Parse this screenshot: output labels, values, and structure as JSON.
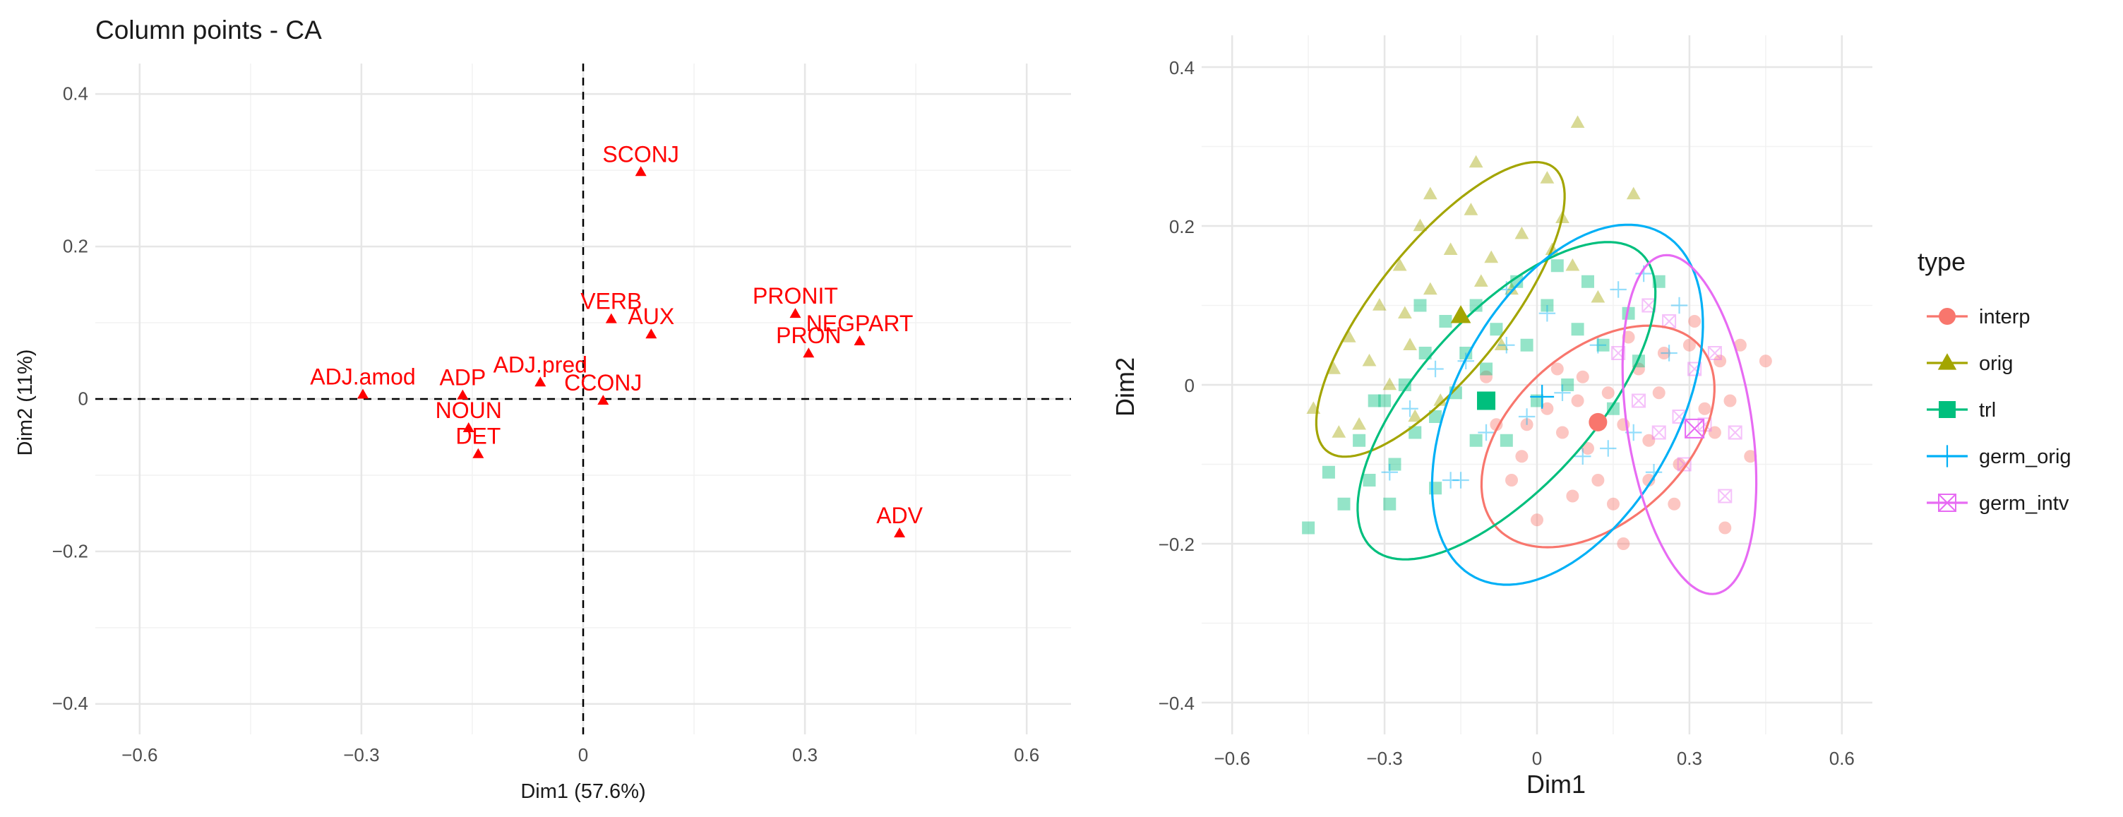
{
  "chart_data": [
    {
      "type": "scatter",
      "title": "Column points - CA",
      "xlabel": "Dim1 (57.6%)",
      "ylabel": "Dim2 (11%)",
      "xlim": [
        -0.66,
        0.66
      ],
      "ylim": [
        -0.44,
        0.44
      ],
      "xticks": [
        -0.6,
        -0.3,
        0,
        0.3,
        0.6
      ],
      "yticks": [
        -0.4,
        -0.2,
        0,
        0.2,
        0.4
      ],
      "xtick_labels": [
        "−0.6",
        "−0.3",
        "0",
        "0.3",
        "0.6"
      ],
      "ytick_labels": [
        "−0.4",
        "−0.2",
        "0",
        "0.2",
        "0.4"
      ],
      "color": "#ff0000",
      "reference_lines": {
        "x": 0,
        "y": 0
      },
      "points": [
        {
          "label": "SCONJ",
          "x": 0.078,
          "y": 0.298
        },
        {
          "label": "VERB",
          "x": 0.038,
          "y": 0.105
        },
        {
          "label": "AUX",
          "x": 0.092,
          "y": 0.085
        },
        {
          "label": "PRONIT",
          "x": 0.287,
          "y": 0.112
        },
        {
          "label": "PRON",
          "x": 0.305,
          "y": 0.06
        },
        {
          "label": "NEGPART",
          "x": 0.374,
          "y": 0.076
        },
        {
          "label": "ADJ.amod",
          "x": -0.298,
          "y": 0.006
        },
        {
          "label": "ADP",
          "x": -0.163,
          "y": 0.005
        },
        {
          "label": "ADJ.pred",
          "x": -0.058,
          "y": 0.022
        },
        {
          "label": "CCONJ",
          "x": 0.027,
          "y": -0.002
        },
        {
          "label": "NOUN",
          "x": -0.155,
          "y": -0.038
        },
        {
          "label": "DET",
          "x": -0.142,
          "y": -0.072
        },
        {
          "label": "ADV",
          "x": 0.428,
          "y": -0.176
        }
      ]
    },
    {
      "type": "scatter",
      "title": "",
      "xlabel": "Dim1",
      "ylabel": "Dim2",
      "xlim": [
        -0.66,
        0.66
      ],
      "ylim": [
        -0.44,
        0.44
      ],
      "xticks": [
        -0.6,
        -0.3,
        0,
        0.3,
        0.6
      ],
      "yticks": [
        -0.4,
        -0.2,
        0,
        0.2,
        0.4
      ],
      "xtick_labels": [
        "−0.6",
        "−0.3",
        "0",
        "0.3",
        "0.6"
      ],
      "ytick_labels": [
        "−0.4",
        "−0.2",
        "0",
        "0.2",
        "0.4"
      ],
      "legend": {
        "title": "type",
        "position": "right"
      },
      "series": [
        {
          "name": "interp",
          "color": "#F8766D",
          "marker": "circle",
          "centroid": [
            0.12,
            -0.047
          ],
          "ellipse": {
            "center": [
              0.12,
              -0.065
            ],
            "rx": 0.24,
            "ry": 0.12,
            "angle_deg": 20
          },
          "points": [
            [
              0.02,
              -0.03
            ],
            [
              0.05,
              -0.06
            ],
            [
              0.08,
              -0.02
            ],
            [
              0.1,
              -0.08
            ],
            [
              0.14,
              -0.01
            ],
            [
              0.17,
              -0.05
            ],
            [
              0.2,
              0.02
            ],
            [
              0.22,
              -0.07
            ],
            [
              0.25,
              0.04
            ],
            [
              0.28,
              -0.1
            ],
            [
              0.3,
              0.05
            ],
            [
              0.33,
              -0.03
            ],
            [
              0.36,
              0.03
            ],
            [
              0.4,
              0.05
            ],
            [
              0.42,
              -0.09
            ],
            [
              0.37,
              -0.18
            ],
            [
              0.27,
              -0.15
            ],
            [
              0.17,
              -0.2
            ],
            [
              0.07,
              -0.14
            ],
            [
              -0.03,
              -0.09
            ],
            [
              -0.08,
              -0.05
            ],
            [
              -0.05,
              -0.12
            ],
            [
              0.0,
              -0.17
            ],
            [
              0.12,
              -0.12
            ],
            [
              0.18,
              0.06
            ],
            [
              0.24,
              -0.01
            ],
            [
              0.31,
              0.08
            ],
            [
              0.38,
              -0.02
            ],
            [
              -0.1,
              0.01
            ],
            [
              0.04,
              0.02
            ],
            [
              0.09,
              0.01
            ],
            [
              0.15,
              -0.15
            ],
            [
              0.22,
              -0.12
            ],
            [
              0.35,
              -0.06
            ],
            [
              0.45,
              0.03
            ],
            [
              -0.02,
              -0.05
            ]
          ]
        },
        {
          "name": "orig",
          "color": "#A3A500",
          "marker": "triangle",
          "centroid": [
            -0.15,
            0.087
          ],
          "ellipse": {
            "center": [
              -0.19,
              0.095
            ],
            "rx": 0.29,
            "ry": 0.1,
            "angle_deg": 35
          },
          "points": [
            [
              -0.44,
              -0.03
            ],
            [
              -0.4,
              0.02
            ],
            [
              -0.37,
              0.06
            ],
            [
              -0.35,
              -0.05
            ],
            [
              -0.31,
              0.1
            ],
            [
              -0.29,
              0.0
            ],
            [
              -0.27,
              0.15
            ],
            [
              -0.25,
              0.05
            ],
            [
              -0.23,
              0.2
            ],
            [
              -0.21,
              0.12
            ],
            [
              -0.19,
              -0.02
            ],
            [
              -0.17,
              0.17
            ],
            [
              -0.15,
              0.09
            ],
            [
              -0.13,
              0.22
            ],
            [
              -0.11,
              0.13
            ],
            [
              -0.09,
              0.16
            ],
            [
              -0.07,
              0.05
            ],
            [
              -0.05,
              0.12
            ],
            [
              -0.03,
              0.19
            ],
            [
              0.03,
              0.17
            ],
            [
              0.05,
              0.21
            ],
            [
              0.12,
              0.11
            ],
            [
              0.19,
              0.24
            ],
            [
              0.07,
              0.15
            ],
            [
              -0.26,
              0.09
            ],
            [
              -0.33,
              0.03
            ],
            [
              -0.21,
              0.24
            ],
            [
              -0.12,
              0.28
            ],
            [
              0.02,
              0.26
            ],
            [
              0.08,
              0.33
            ],
            [
              -0.39,
              -0.06
            ],
            [
              -0.24,
              -0.04
            ]
          ]
        },
        {
          "name": "trl",
          "color": "#00BF7D",
          "marker": "square",
          "centroid": [
            -0.1,
            -0.02
          ],
          "ellipse": {
            "center": [
              -0.06,
              -0.02
            ],
            "rx": 0.33,
            "ry": 0.13,
            "angle_deg": 30
          },
          "points": [
            [
              -0.45,
              -0.18
            ],
            [
              -0.41,
              -0.11
            ],
            [
              -0.38,
              -0.15
            ],
            [
              -0.35,
              -0.07
            ],
            [
              -0.33,
              -0.12
            ],
            [
              -0.3,
              -0.02
            ],
            [
              -0.28,
              -0.1
            ],
            [
              -0.26,
              0.0
            ],
            [
              -0.24,
              -0.06
            ],
            [
              -0.22,
              0.04
            ],
            [
              -0.2,
              -0.04
            ],
            [
              -0.18,
              0.08
            ],
            [
              -0.16,
              -0.01
            ],
            [
              -0.14,
              0.04
            ],
            [
              -0.12,
              0.1
            ],
            [
              -0.1,
              0.02
            ],
            [
              -0.08,
              0.07
            ],
            [
              -0.06,
              -0.07
            ],
            [
              -0.04,
              0.13
            ],
            [
              -0.02,
              0.05
            ],
            [
              0.0,
              -0.02
            ],
            [
              0.02,
              0.1
            ],
            [
              0.04,
              0.15
            ],
            [
              0.06,
              0.0
            ],
            [
              0.08,
              0.07
            ],
            [
              0.1,
              0.13
            ],
            [
              0.13,
              0.05
            ],
            [
              0.15,
              -0.03
            ],
            [
              0.18,
              0.09
            ],
            [
              0.2,
              0.03
            ],
            [
              -0.32,
              -0.02
            ],
            [
              -0.2,
              -0.13
            ],
            [
              -0.12,
              -0.07
            ],
            [
              -0.29,
              -0.15
            ],
            [
              0.24,
              0.13
            ],
            [
              -0.23,
              0.1
            ]
          ]
        },
        {
          "name": "germ_orig",
          "color": "#00B0F6",
          "marker": "plus",
          "centroid": [
            0.01,
            -0.015
          ],
          "ellipse": {
            "center": [
              0.06,
              -0.025
            ],
            "rx": 0.3,
            "ry": 0.18,
            "angle_deg": 35
          },
          "points": [
            [
              -0.29,
              -0.11
            ],
            [
              -0.25,
              -0.03
            ],
            [
              -0.2,
              0.02
            ],
            [
              -0.17,
              -0.12
            ],
            [
              -0.14,
              0.03
            ],
            [
              -0.1,
              -0.06
            ],
            [
              -0.06,
              0.05
            ],
            [
              -0.02,
              -0.04
            ],
            [
              0.02,
              0.09
            ],
            [
              0.05,
              -0.01
            ],
            [
              0.09,
              -0.09
            ],
            [
              0.12,
              0.05
            ],
            [
              0.16,
              0.12
            ],
            [
              0.19,
              -0.06
            ],
            [
              0.21,
              0.14
            ],
            [
              0.23,
              -0.11
            ],
            [
              0.26,
              0.04
            ],
            [
              0.28,
              0.1
            ],
            [
              -0.15,
              -0.12
            ],
            [
              -0.06,
              0.12
            ],
            [
              0.14,
              -0.08
            ]
          ]
        },
        {
          "name": "germ_intv",
          "color": "#E76BF3",
          "marker": "boxx",
          "centroid": [
            0.31,
            -0.055
          ],
          "ellipse": {
            "center": [
              0.3,
              -0.05
            ],
            "rx": 0.22,
            "ry": 0.12,
            "angle_deg": -73
          },
          "points": [
            [
              0.16,
              0.04
            ],
            [
              0.2,
              -0.02
            ],
            [
              0.24,
              -0.06
            ],
            [
              0.26,
              0.08
            ],
            [
              0.29,
              -0.1
            ],
            [
              0.31,
              0.02
            ],
            [
              0.33,
              -0.05
            ],
            [
              0.35,
              0.04
            ],
            [
              0.37,
              -0.14
            ],
            [
              0.39,
              -0.06
            ],
            [
              0.22,
              0.1
            ],
            [
              0.28,
              -0.04
            ]
          ]
        }
      ]
    }
  ]
}
